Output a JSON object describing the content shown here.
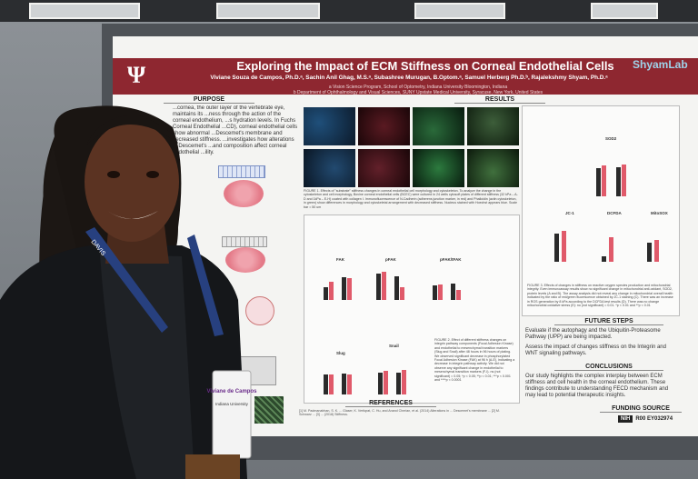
{
  "poster": {
    "title": "Exploring the Impact of ECM Stiffness on Corneal Endothelial Cells",
    "brand": "ShyamLab",
    "authors": "Viviane Souza de Campos, Ph.D.ᵃ, Sachin Anil Ghag, M.S.ᵃ, Subashree Murugan, B.Optom.ᵃ, Samuel Herberg Ph.D.ᵇ, Rajalekshmy Shyam, Ph.D.ᵃ",
    "affiliation_a": "a Vision Science Program, School of Optometry, Indiana University Bloomington, Indiana",
    "affiliation_b": "b Department of Ophthalmology and Visual Sciences, SUNY Upstate Medical University, Syracuse, New York, United States",
    "sections": {
      "purpose": "PURPOSE",
      "results": "RESULTS",
      "future_steps": "FUTURE STEPS",
      "conclusions": "CONCLUSIONS",
      "references": "REFERENCES",
      "funding": "FUNDING SOURCE"
    },
    "purpose_text": "...cornea, the outer layer of the vertebrate eye, maintains its ...ness through the action of the corneal endothelium, ...s hydration levels. In Fuchs Corneal Endothelial ...CD), corneal endothelial cells show abnormal ...Descemet's membrane and decreased stiffness. ...investigates how alterations in Descemet's ...and composition affect corneal endothelial ...ility.",
    "figure1_caption": "FIGURE 1. Effects of \"substrate\" stiffness changes in corneal endothelial cell morphology and cytoskeleton. To analyze the change in the cytoskeleton and cell morphology, Bovine corneal endothelial cells (BCEC) were cultured in 24 wells cytosoft plates of different stiffness (32 kPa – A-D and 1kPa – E-H) coated with collagen I. Immunofluorescence of N-Cadherin (adherens junction marker, in red) and Phalloidin (actin cytoskeleton, in green) show differences in morphology and cytoskeletal arrangement with decreased stiffness. Nucleus stained with Hoechst appears blue. Scale bar = 50 um",
    "figure3_caption": "FIGURE 3. Effects of changes in stiffness on reactive oxygen species production and mitochondrial integrity. Even immunoassay results show no significant change in mitochondrial anti-oxidant, SOD2, protein levels (A and B). The assay analysis did not reveal any change in mitochondrial overall health indicated by the ratio of red/green fluorescence obtained by JC-1 staining (C). There was an increase in ROS generation by 8 kPa according to the DCFDA test results (D). There was no change mitochondrial oxidative stress (E): no (not significant) = 0.01. *p < 0.01 and **p < 0.01",
    "figure2_caption": "FIGURE 2. Effect of different stiffness changes on integrin pathway components (Focal Adhesion Kinase) and endothelial to mesenchymal transition markers (Slug and Snail) after 48 hours in 96 hours of plating. We observed significant decrease in phosphorylated Focal Adhesion Kinase (FAK) at 96 h (A-E), indicating a decrease in integrin pathway activity. We did not observe any significant change in endothelial to mesenchymal transition markers (F-I). ns (not significant) = 0.05; *p < 0.05; **p < 0.01; ***p < 0.001 and ****p < 0.0001",
    "panel_labels": [
      "SOD2",
      "JC-1",
      "DCFDA",
      "MitoSOX",
      "tFAK",
      "pFAK/tFAK",
      "Slug",
      "Snail",
      "pFAK",
      "FAK"
    ],
    "future_steps": [
      "Evaluate if the autophagy and the Ubiquitin-Proteasome Pathway (UPP) are being impacted.",
      "Assess the impact of changes stiffness on the Integrin and WNT signaling pathways."
    ],
    "conclusions_text": "Our study highlights the complex interplay between ECM stiffness and cell health in the corneal endothelium. These findings contribute to understanding FECD mechanism and may lead to potential therapeutic insights.",
    "references_text": "[1] M. Padmanabhan, S. K. ... Glaser, K. Vertiqrat, C. Hu, and Anand Cherian, et al. (2014) Alterations in ... Descemet's membrane ... [2] M. Schwarz ... [3] ... (2018) Stiffness.",
    "funding_id": "R00 EY032974",
    "funding_org": "NIH"
  },
  "badge": {
    "name": "Viviane de Campos",
    "org": "Indiana University"
  },
  "lanyard_text": "DAVIS",
  "colors": {
    "poster_header": "#8e2730",
    "bar_control": "#2a2a2a",
    "bar_treatment": "#e05a6a"
  }
}
